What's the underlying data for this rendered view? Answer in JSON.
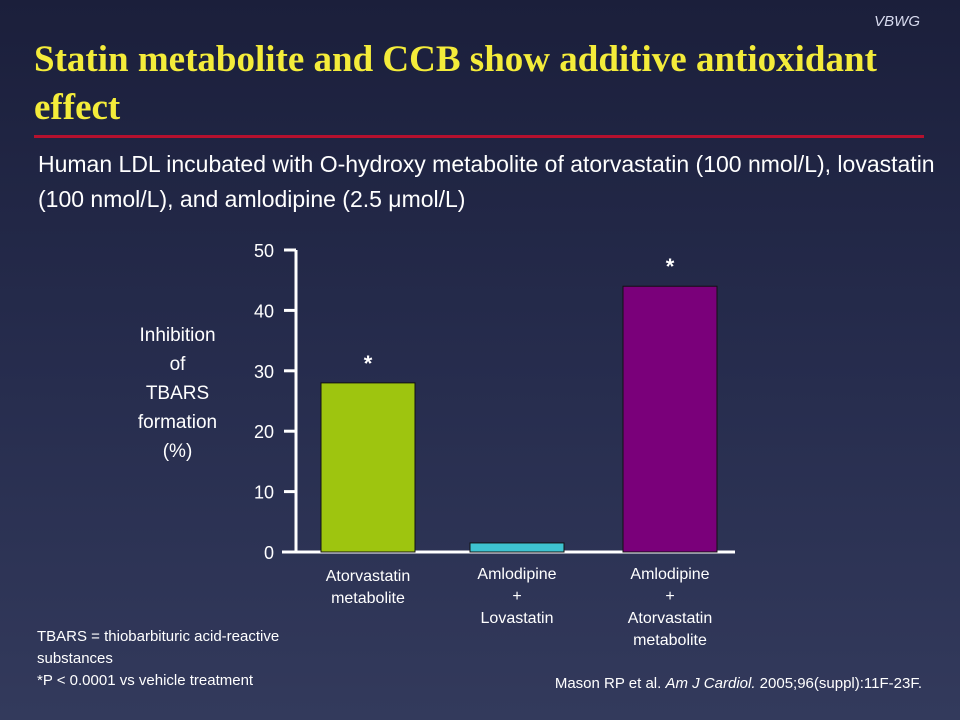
{
  "brand": "VBWG",
  "title": "Statin metabolite and CCB show additive antioxidant effect",
  "subtitle": "Human LDL incubated with O-hydroxy metabolite of atorvastatin (100 nmol/L), lovastatin (100 nmol/L), and amlodipine (2.5 μmol/L)",
  "footnote": {
    "line1": "TBARS = thiobarbituric acid-reactive",
    "line2": "substances",
    "line3": "*P < 0.0001 vs vehicle treatment"
  },
  "citation": {
    "authors": "Mason RP et al. ",
    "journal": "Am J Cardiol.",
    "details": " 2005;96(suppl):11F-23F."
  },
  "colors": {
    "title": "#f4ec3a",
    "rule": "#b5112e"
  },
  "chart_data": {
    "type": "bar",
    "ylabel": [
      "Inhibition",
      "of",
      "TBARS",
      "formation",
      "(%)"
    ],
    "ylim": [
      0,
      50
    ],
    "yticks": [
      0,
      10,
      20,
      30,
      40,
      50
    ],
    "categories": [
      [
        "Atorvastatin",
        "metabolite"
      ],
      [
        "Amlodipine",
        "+",
        "Lovastatin"
      ],
      [
        "Amlodipine",
        "+",
        "Atorvastatin",
        "metabolite"
      ]
    ],
    "values": [
      28,
      1.5,
      44
    ],
    "annotations": [
      "*",
      "",
      "*"
    ],
    "bar_colors": [
      "#9ec50f",
      "#3ec3d0",
      "#7a007a"
    ],
    "grid": false,
    "legend": "none"
  }
}
